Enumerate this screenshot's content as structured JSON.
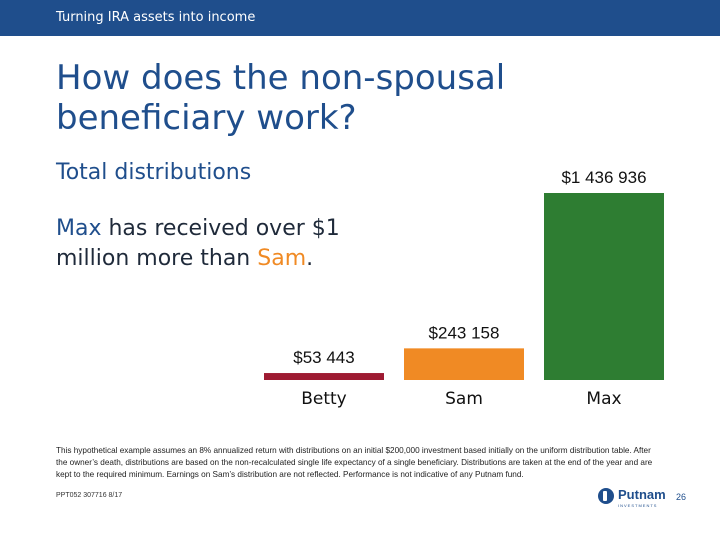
{
  "header": {
    "section_label": "Turning IRA assets into income"
  },
  "slide": {
    "title": "How does the non-spousal beneficiary work?",
    "subtitle": "Total distributions",
    "callout": {
      "part1": "Max",
      "part2": " has received over $1 million more than ",
      "part3": "Sam",
      "part4": "."
    }
  },
  "chart_data": {
    "type": "bar",
    "title": "Total distributions",
    "categories": [
      "Betty",
      "Sam",
      "Max"
    ],
    "values": [
      53443,
      243158,
      1436936
    ],
    "value_labels": [
      "$53 443",
      "$243 158",
      "$1 436 936"
    ],
    "colors": [
      "#9e1b32",
      "#f08a24",
      "#2e7d32"
    ],
    "ylim": [
      0,
      1436936
    ],
    "grid": false,
    "legend": "none"
  },
  "footer": {
    "disclaimer": "This hypothetical example assumes an 8% annualized return with distributions on an initial $200,000 investment based initially on the uniform distribution table. After the owner’s death, distributions are based on the non-recalculated single life expectancy of a single beneficiary. Distributions are taken at the end of the year and are kept to the required minimum. Earnings on Sam’s distribution are not reflected. Performance is not indicative of any Putnam fund.",
    "code": "PPT052  307716  8/17",
    "brand_name": "Putnam",
    "brand_subtitle": "INVESTMENTS",
    "page_number": "26"
  }
}
